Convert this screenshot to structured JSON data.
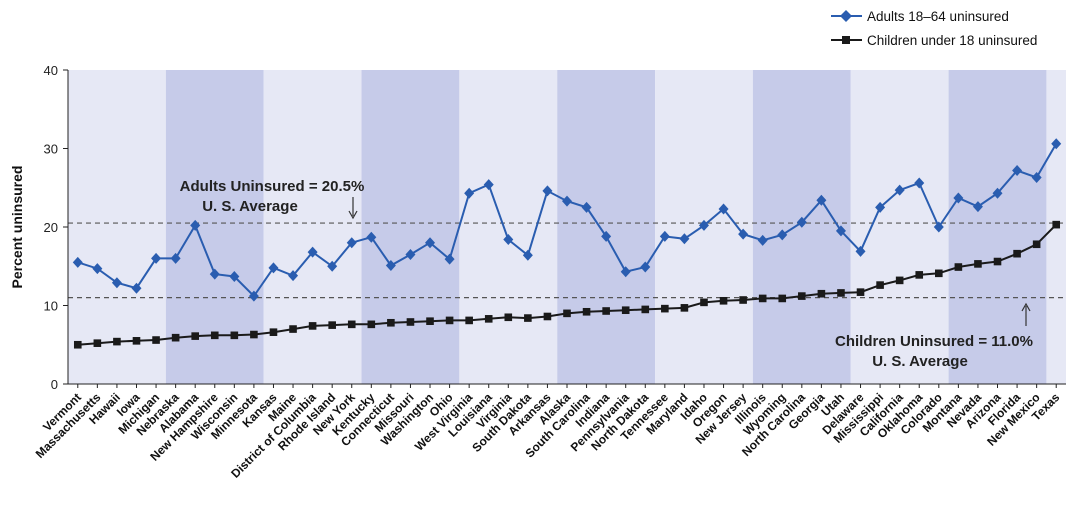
{
  "chart_data": {
    "type": "line",
    "categories": [
      "Vermont",
      "Massachusetts",
      "Hawaii",
      "Iowa",
      "Michigan",
      "Nebraska",
      "Alabama",
      "New Hampshire",
      "Wisconsin",
      "Minnesota",
      "Kansas",
      "Maine",
      "District of Columbia",
      "Rhode Island",
      "New York",
      "Kentucky",
      "Connecticut",
      "Missouri",
      "Washington",
      "Ohio",
      "West Virginia",
      "Louisiana",
      "Virginia",
      "South Dakota",
      "Arkansas",
      "Alaska",
      "South Carolina",
      "Indiana",
      "Pennsylvania",
      "North Dakota",
      "Tennessee",
      "Maryland",
      "Idaho",
      "Oregon",
      "New Jersey",
      "Illinois",
      "Wyoming",
      "North Carolina",
      "Georgia",
      "Utah",
      "Delaware",
      "Mississippi",
      "California",
      "Oklahoma",
      "Colorado",
      "Montana",
      "Nevada",
      "Arizona",
      "Florida",
      "New Mexico",
      "Texas"
    ],
    "series": [
      {
        "name": "Adults 18–64 uninsured",
        "marker": "diamond",
        "color": "#2a5db0",
        "values": [
          15.5,
          14.7,
          12.9,
          12.2,
          16.0,
          16.0,
          20.2,
          14.0,
          13.7,
          11.2,
          14.8,
          13.8,
          16.8,
          15.0,
          18.0,
          18.7,
          15.1,
          16.5,
          18.0,
          15.9,
          24.3,
          25.4,
          18.4,
          16.4,
          24.6,
          23.3,
          22.5,
          18.8,
          14.3,
          14.9,
          18.8,
          18.5,
          20.2,
          22.3,
          19.1,
          18.3,
          19.0,
          20.6,
          23.4,
          19.5,
          16.9,
          22.5,
          24.7,
          25.6,
          20.0,
          23.7,
          22.6,
          24.3,
          27.2,
          26.3,
          30.6
        ]
      },
      {
        "name": "Children under 18 uninsured",
        "marker": "square",
        "color": "#1a1a1a",
        "values": [
          5.0,
          5.2,
          5.4,
          5.5,
          5.6,
          5.9,
          6.1,
          6.2,
          6.2,
          6.3,
          6.6,
          7.0,
          7.4,
          7.5,
          7.6,
          7.6,
          7.8,
          7.9,
          8.0,
          8.1,
          8.1,
          8.3,
          8.5,
          8.4,
          8.6,
          9.0,
          9.2,
          9.3,
          9.4,
          9.5,
          9.6,
          9.7,
          10.4,
          10.6,
          10.7,
          10.9,
          10.9,
          11.2,
          11.5,
          11.6,
          11.7,
          12.6,
          13.2,
          13.9,
          14.1,
          14.9,
          15.3,
          15.6,
          16.6,
          17.8,
          20.3
        ]
      }
    ],
    "ylabel": "Percent uninsured",
    "ylim": [
      0,
      40
    ],
    "yticks": [
      0,
      10,
      20,
      30,
      40
    ],
    "reference_lines": [
      20.5,
      11.0
    ],
    "annotations": [
      {
        "text": "Adults Uninsured = 20.5%",
        "text2": "U. S. Average"
      },
      {
        "text": "Children Uninsured = 11.0%",
        "text2": "U. S. Average"
      }
    ],
    "legend_position": "top-right",
    "band_colors": [
      "#e6e8f5",
      "#c6cbe9"
    ]
  }
}
